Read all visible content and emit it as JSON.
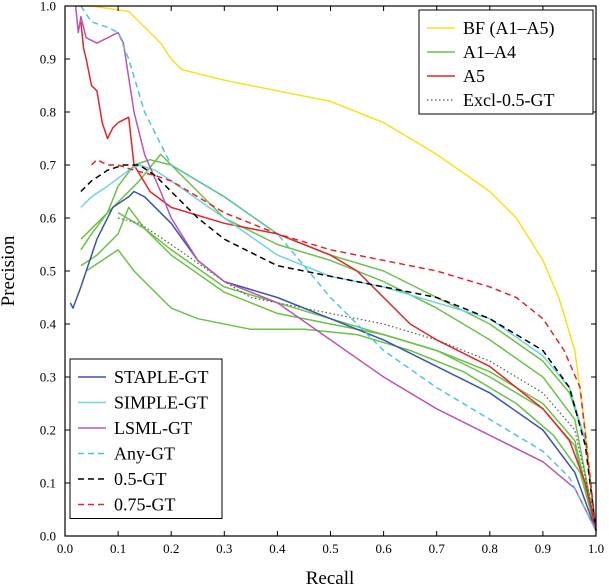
{
  "chart_data": {
    "type": "line",
    "xlabel": "Recall",
    "ylabel": "Precision",
    "xlim": [
      0,
      1
    ],
    "ylim": [
      0,
      1
    ],
    "xticks": [
      "0.0",
      "0.1",
      "0.2",
      "0.3",
      "0.4",
      "0.5",
      "0.6",
      "0.7",
      "0.8",
      "0.9",
      "1.0"
    ],
    "yticks": [
      "0.0",
      "0.1",
      "0.2",
      "0.3",
      "0.4",
      "0.5",
      "0.6",
      "0.7",
      "0.8",
      "0.9",
      "1.0"
    ],
    "grid": false,
    "legends": [
      {
        "placement": "top-right",
        "entries": [
          {
            "name": "BF (A1–A5)",
            "color": "#f5e21c",
            "dash": "solid"
          },
          {
            "name": "A1–A4",
            "color": "#6cc14a",
            "dash": "solid"
          },
          {
            "name": "A5",
            "color": "#e0262a",
            "dash": "solid"
          },
          {
            "name": "Excl-0.5-GT",
            "color": "#555555",
            "dash": "dotted"
          }
        ]
      },
      {
        "placement": "bottom-left",
        "entries": [
          {
            "name": "STAPLE-GT",
            "color": "#3a55a8",
            "dash": "solid"
          },
          {
            "name": "SIMPLE-GT",
            "color": "#6fd3e3",
            "dash": "solid"
          },
          {
            "name": "LSML-GT",
            "color": "#b657b3",
            "dash": "solid"
          },
          {
            "name": "Any-GT",
            "color": "#4cc6dd",
            "dash": "dashed"
          },
          {
            "name": "0.5-GT",
            "color": "#000000",
            "dash": "dashed"
          },
          {
            "name": "0.75-GT",
            "color": "#e0262a",
            "dash": "dashed"
          }
        ]
      }
    ],
    "series": [
      {
        "name": "BF (A1–A5)",
        "color": "#f5e21c",
        "dash": "solid",
        "points": [
          [
            0.02,
            1.0
          ],
          [
            0.05,
            1.0
          ],
          [
            0.12,
            0.99
          ],
          [
            0.14,
            0.97
          ],
          [
            0.16,
            0.95
          ],
          [
            0.18,
            0.93
          ],
          [
            0.2,
            0.9
          ],
          [
            0.22,
            0.88
          ],
          [
            0.3,
            0.86
          ],
          [
            0.4,
            0.84
          ],
          [
            0.5,
            0.82
          ],
          [
            0.6,
            0.78
          ],
          [
            0.7,
            0.72
          ],
          [
            0.8,
            0.65
          ],
          [
            0.85,
            0.6
          ],
          [
            0.9,
            0.52
          ],
          [
            0.93,
            0.45
          ],
          [
            0.96,
            0.35
          ],
          [
            0.98,
            0.2
          ],
          [
            1.0,
            0.01
          ]
        ]
      },
      {
        "name": "A1–A4",
        "color": "#6cc14a",
        "dash": "solid",
        "points": [
          [
            0.03,
            0.54
          ],
          [
            0.05,
            0.57
          ],
          [
            0.08,
            0.61
          ],
          [
            0.1,
            0.66
          ],
          [
            0.13,
            0.7
          ],
          [
            0.16,
            0.71
          ],
          [
            0.2,
            0.7
          ],
          [
            0.3,
            0.64
          ],
          [
            0.4,
            0.57
          ],
          [
            0.5,
            0.53
          ],
          [
            0.6,
            0.5
          ],
          [
            0.7,
            0.45
          ],
          [
            0.8,
            0.4
          ],
          [
            0.9,
            0.33
          ],
          [
            0.95,
            0.27
          ],
          [
            0.98,
            0.18
          ],
          [
            1.0,
            0.01
          ]
        ]
      },
      {
        "name": "A1–A4",
        "color": "#6cc14a",
        "dash": "solid",
        "points": [
          [
            0.03,
            0.56
          ],
          [
            0.06,
            0.59
          ],
          [
            0.1,
            0.63
          ],
          [
            0.14,
            0.67
          ],
          [
            0.18,
            0.72
          ],
          [
            0.22,
            0.68
          ],
          [
            0.3,
            0.6
          ],
          [
            0.4,
            0.55
          ],
          [
            0.5,
            0.52
          ],
          [
            0.6,
            0.48
          ],
          [
            0.7,
            0.43
          ],
          [
            0.8,
            0.37
          ],
          [
            0.9,
            0.3
          ],
          [
            0.96,
            0.22
          ],
          [
            1.0,
            0.01
          ]
        ]
      },
      {
        "name": "A1–A4",
        "color": "#6cc14a",
        "dash": "solid",
        "points": [
          [
            0.03,
            0.51
          ],
          [
            0.06,
            0.53
          ],
          [
            0.1,
            0.57
          ],
          [
            0.12,
            0.62
          ],
          [
            0.15,
            0.58
          ],
          [
            0.2,
            0.54
          ],
          [
            0.3,
            0.47
          ],
          [
            0.4,
            0.44
          ],
          [
            0.5,
            0.41
          ],
          [
            0.6,
            0.38
          ],
          [
            0.7,
            0.35
          ],
          [
            0.8,
            0.3
          ],
          [
            0.9,
            0.24
          ],
          [
            0.96,
            0.17
          ],
          [
            1.0,
            0.01
          ]
        ]
      },
      {
        "name": "A1–A4",
        "color": "#6cc14a",
        "dash": "solid",
        "points": [
          [
            0.04,
            0.5
          ],
          [
            0.07,
            0.52
          ],
          [
            0.1,
            0.54
          ],
          [
            0.13,
            0.5
          ],
          [
            0.2,
            0.43
          ],
          [
            0.25,
            0.41
          ],
          [
            0.35,
            0.39
          ],
          [
            0.45,
            0.39
          ],
          [
            0.55,
            0.38
          ],
          [
            0.65,
            0.35
          ],
          [
            0.75,
            0.31
          ],
          [
            0.85,
            0.25
          ],
          [
            0.92,
            0.19
          ],
          [
            0.97,
            0.12
          ],
          [
            1.0,
            0.01
          ]
        ]
      },
      {
        "name": "A1–A4",
        "color": "#6cc14a",
        "dash": "solid",
        "points": [
          [
            0.1,
            0.61
          ],
          [
            0.15,
            0.58
          ],
          [
            0.2,
            0.53
          ],
          [
            0.3,
            0.46
          ],
          [
            0.4,
            0.42
          ],
          [
            0.5,
            0.4
          ],
          [
            0.6,
            0.38
          ],
          [
            0.7,
            0.35
          ],
          [
            0.8,
            0.31
          ],
          [
            0.9,
            0.25
          ],
          [
            0.96,
            0.18
          ],
          [
            1.0,
            0.01
          ]
        ]
      },
      {
        "name": "A5",
        "color": "#e0262a",
        "dash": "solid",
        "points": [
          [
            0.03,
            0.97
          ],
          [
            0.035,
            0.92
          ],
          [
            0.04,
            0.9
          ],
          [
            0.05,
            0.85
          ],
          [
            0.06,
            0.84
          ],
          [
            0.07,
            0.78
          ],
          [
            0.08,
            0.75
          ],
          [
            0.09,
            0.77
          ],
          [
            0.1,
            0.78
          ],
          [
            0.12,
            0.79
          ],
          [
            0.13,
            0.7
          ],
          [
            0.16,
            0.65
          ],
          [
            0.2,
            0.62
          ],
          [
            0.3,
            0.59
          ],
          [
            0.4,
            0.57
          ],
          [
            0.5,
            0.53
          ],
          [
            0.55,
            0.5
          ],
          [
            0.6,
            0.45
          ],
          [
            0.65,
            0.4
          ],
          [
            0.7,
            0.37
          ],
          [
            0.8,
            0.32
          ],
          [
            0.9,
            0.24
          ],
          [
            0.95,
            0.18
          ],
          [
            0.98,
            0.1
          ],
          [
            1.0,
            0.01
          ]
        ]
      },
      {
        "name": "Excl-0.5-GT",
        "color": "#555555",
        "dash": "dotted",
        "points": [
          [
            0.1,
            0.6
          ],
          [
            0.14,
            0.59
          ],
          [
            0.2,
            0.55
          ],
          [
            0.3,
            0.48
          ],
          [
            0.35,
            0.45
          ],
          [
            0.4,
            0.44
          ],
          [
            0.5,
            0.42
          ],
          [
            0.6,
            0.4
          ],
          [
            0.7,
            0.37
          ],
          [
            0.8,
            0.33
          ],
          [
            0.9,
            0.27
          ],
          [
            0.96,
            0.2
          ],
          [
            1.0,
            0.02
          ]
        ]
      },
      {
        "name": "STAPLE-GT",
        "color": "#3a55a8",
        "dash": "solid",
        "points": [
          [
            0.01,
            0.44
          ],
          [
            0.015,
            0.43
          ],
          [
            0.03,
            0.47
          ],
          [
            0.06,
            0.56
          ],
          [
            0.09,
            0.62
          ],
          [
            0.12,
            0.64
          ],
          [
            0.13,
            0.65
          ],
          [
            0.15,
            0.64
          ],
          [
            0.2,
            0.59
          ],
          [
            0.25,
            0.52
          ],
          [
            0.3,
            0.48
          ],
          [
            0.4,
            0.45
          ],
          [
            0.5,
            0.41
          ],
          [
            0.6,
            0.37
          ],
          [
            0.7,
            0.32
          ],
          [
            0.8,
            0.27
          ],
          [
            0.9,
            0.2
          ],
          [
            0.96,
            0.12
          ],
          [
            1.0,
            0.01
          ]
        ]
      },
      {
        "name": "SIMPLE-GT",
        "color": "#6fd3e3",
        "dash": "solid",
        "points": [
          [
            0.03,
            0.62
          ],
          [
            0.05,
            0.64
          ],
          [
            0.08,
            0.66
          ],
          [
            0.12,
            0.69
          ],
          [
            0.14,
            0.7
          ],
          [
            0.17,
            0.69
          ],
          [
            0.2,
            0.67
          ],
          [
            0.3,
            0.6
          ],
          [
            0.4,
            0.53
          ],
          [
            0.5,
            0.49
          ],
          [
            0.6,
            0.47
          ],
          [
            0.7,
            0.44
          ],
          [
            0.8,
            0.41
          ],
          [
            0.9,
            0.34
          ],
          [
            0.95,
            0.28
          ],
          [
            0.98,
            0.18
          ],
          [
            1.0,
            0.01
          ]
        ]
      },
      {
        "name": "LSML-GT",
        "color": "#b657b3",
        "dash": "solid",
        "points": [
          [
            0.02,
            1.0
          ],
          [
            0.025,
            0.95
          ],
          [
            0.03,
            0.98
          ],
          [
            0.04,
            0.94
          ],
          [
            0.06,
            0.93
          ],
          [
            0.08,
            0.94
          ],
          [
            0.1,
            0.95
          ],
          [
            0.11,
            0.93
          ],
          [
            0.13,
            0.8
          ],
          [
            0.15,
            0.72
          ],
          [
            0.18,
            0.65
          ],
          [
            0.2,
            0.6
          ],
          [
            0.25,
            0.52
          ],
          [
            0.3,
            0.48
          ],
          [
            0.4,
            0.44
          ],
          [
            0.5,
            0.37
          ],
          [
            0.6,
            0.3
          ],
          [
            0.7,
            0.24
          ],
          [
            0.8,
            0.19
          ],
          [
            0.9,
            0.14
          ],
          [
            0.96,
            0.09
          ],
          [
            1.0,
            0.01
          ]
        ]
      },
      {
        "name": "Any-GT",
        "color": "#4cc6dd",
        "dash": "dashed",
        "points": [
          [
            0.03,
            1.0
          ],
          [
            0.05,
            0.97
          ],
          [
            0.08,
            0.96
          ],
          [
            0.1,
            0.95
          ],
          [
            0.12,
            0.9
          ],
          [
            0.15,
            0.8
          ],
          [
            0.2,
            0.7
          ],
          [
            0.3,
            0.64
          ],
          [
            0.4,
            0.57
          ],
          [
            0.5,
            0.45
          ],
          [
            0.6,
            0.35
          ],
          [
            0.7,
            0.28
          ],
          [
            0.8,
            0.22
          ],
          [
            0.9,
            0.16
          ],
          [
            0.95,
            0.11
          ],
          [
            1.0,
            0.01
          ]
        ]
      },
      {
        "name": "0.5-GT",
        "color": "#000000",
        "dash": "dashed",
        "points": [
          [
            0.03,
            0.65
          ],
          [
            0.05,
            0.67
          ],
          [
            0.08,
            0.69
          ],
          [
            0.11,
            0.7
          ],
          [
            0.14,
            0.7
          ],
          [
            0.17,
            0.68
          ],
          [
            0.2,
            0.65
          ],
          [
            0.25,
            0.6
          ],
          [
            0.3,
            0.56
          ],
          [
            0.4,
            0.51
          ],
          [
            0.5,
            0.49
          ],
          [
            0.6,
            0.47
          ],
          [
            0.7,
            0.45
          ],
          [
            0.8,
            0.41
          ],
          [
            0.9,
            0.35
          ],
          [
            0.95,
            0.28
          ],
          [
            0.98,
            0.17
          ],
          [
            1.0,
            0.01
          ]
        ]
      },
      {
        "name": "0.75-GT",
        "color": "#e0262a",
        "dash": "dashed",
        "points": [
          [
            0.05,
            0.7
          ],
          [
            0.06,
            0.71
          ],
          [
            0.08,
            0.7
          ],
          [
            0.1,
            0.7
          ],
          [
            0.13,
            0.69
          ],
          [
            0.17,
            0.68
          ],
          [
            0.2,
            0.67
          ],
          [
            0.3,
            0.61
          ],
          [
            0.4,
            0.57
          ],
          [
            0.5,
            0.54
          ],
          [
            0.6,
            0.52
          ],
          [
            0.7,
            0.5
          ],
          [
            0.8,
            0.47
          ],
          [
            0.85,
            0.45
          ],
          [
            0.9,
            0.41
          ],
          [
            0.94,
            0.35
          ],
          [
            0.97,
            0.28
          ],
          [
            1.0,
            0.01
          ]
        ]
      }
    ]
  }
}
